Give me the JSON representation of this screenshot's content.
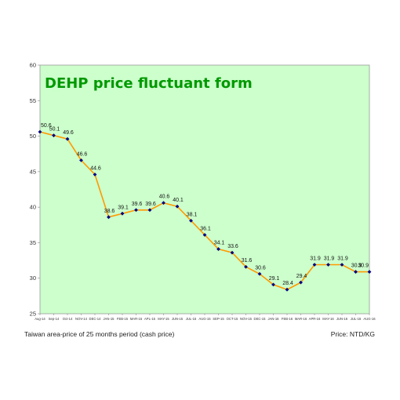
{
  "chart_data": {
    "type": "line",
    "title": "DEHP price fluctuant form",
    "categories": [
      "Aug-14",
      "Sep-14",
      "Oct-14",
      "NOV-14",
      "DEC-14",
      "JAN-15",
      "FEB-15",
      "MAR-15",
      "APL-15",
      "MAY-15",
      "JUN-15",
      "JUL-15",
      "AUG-15",
      "SEP-15",
      "OCT-15",
      "NOV-15",
      "DEC-15",
      "JAN-16",
      "FEB-16",
      "MAR-16",
      "APR-16",
      "MAY-16",
      "JUN-16",
      "JUL-16",
      "AUG-16"
    ],
    "series": [
      {
        "values": [
          50.6,
          50.1,
          49.6,
          46.6,
          44.6,
          38.6,
          39.1,
          39.6,
          39.6,
          40.6,
          40.1,
          38.1,
          36.1,
          34.1,
          33.6,
          31.6,
          30.6,
          29.1,
          28.4,
          29.4,
          31.9,
          31.9,
          31.9,
          30.9,
          30.9
        ],
        "labels": [
          "50.6",
          "50.1",
          "49.6",
          "46.6",
          "44.6",
          "38.6",
          "39.1",
          "39.6",
          "39.6",
          "40.6",
          "40.1",
          "38.1",
          "36.1",
          "34.1",
          "33.6",
          "31.6",
          "30.6",
          "29.1",
          "28.4",
          "29.4",
          "31.9",
          "31.9",
          "31.9",
          "30.9",
          "30.9"
        ]
      }
    ],
    "y_ticks": [
      "25",
      "30",
      "35",
      "40",
      "45",
      "50",
      "55",
      "60"
    ],
    "ylim": [
      25,
      60
    ],
    "grid": false,
    "colors": {
      "plot_bg": "#ccffcc",
      "line": "#ff9900",
      "marker": "#000080",
      "title": "#009900"
    }
  },
  "captions": {
    "left": "Taiwan area-price of 25 months period (cash price)",
    "right": "Price: NTD/KG"
  }
}
